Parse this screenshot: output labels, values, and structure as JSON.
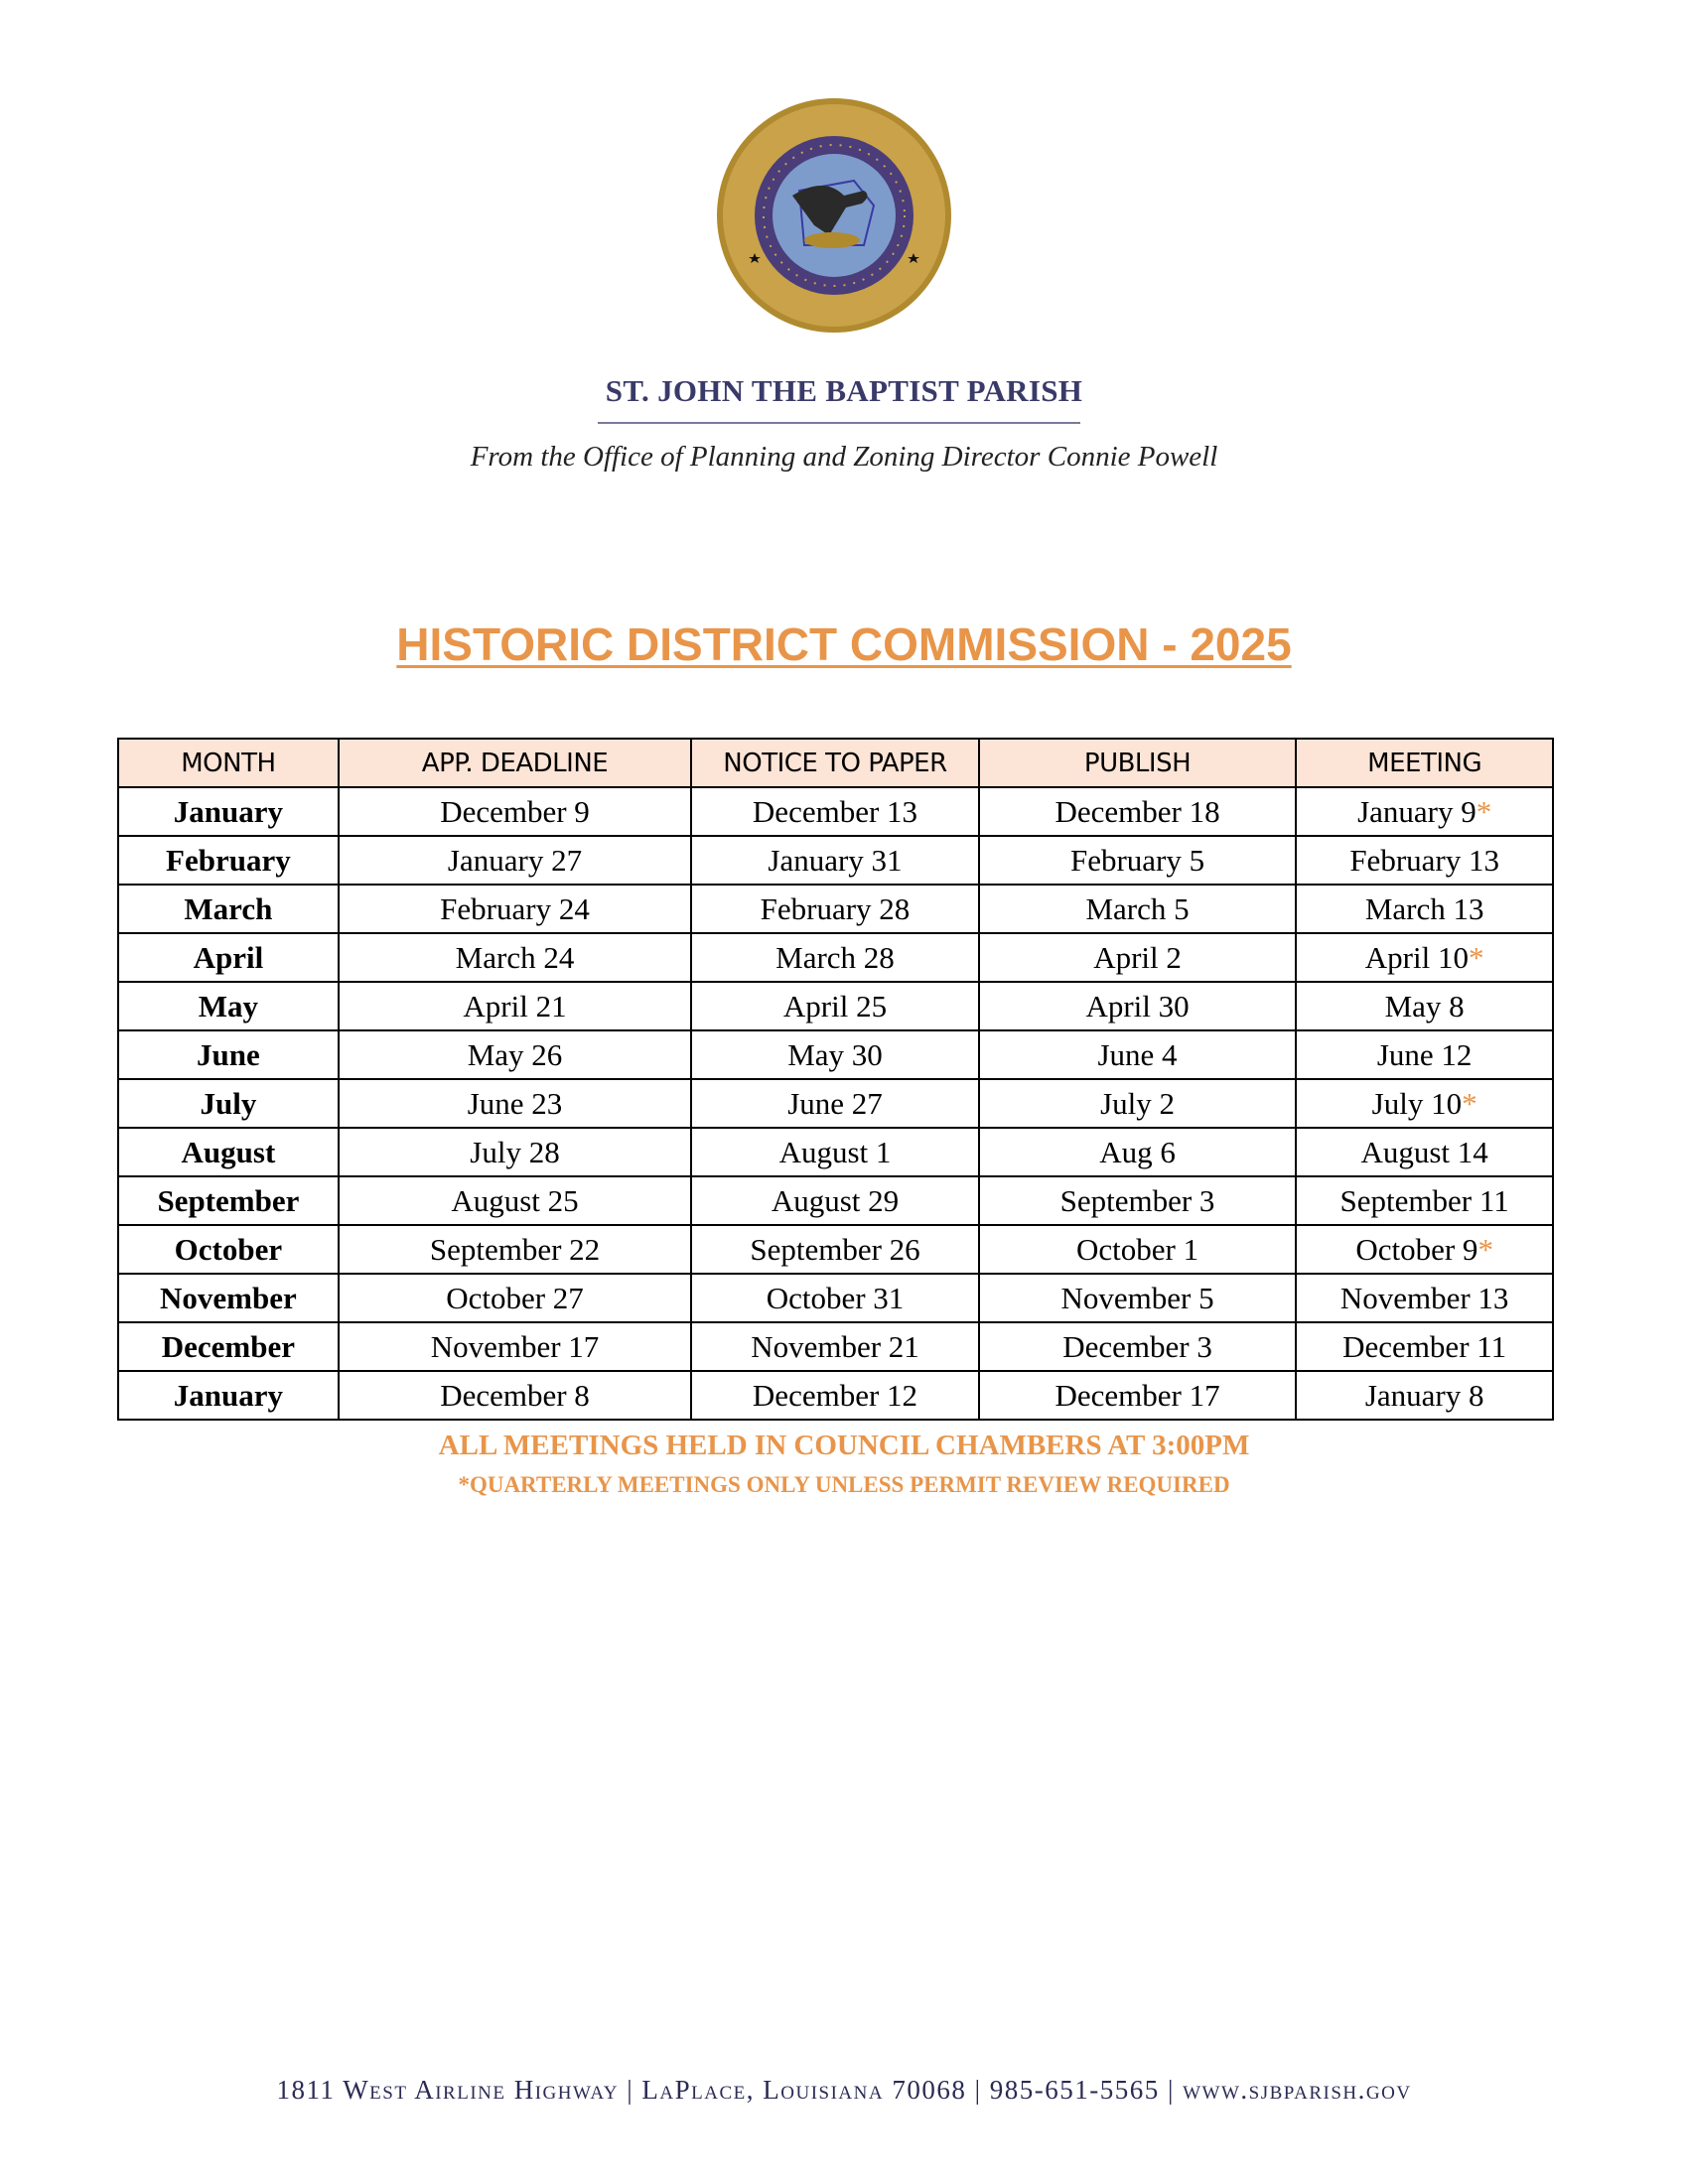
{
  "header": {
    "seal_text": [
      "ST. JOHN THE BAPTIST PARISH",
      "LOUISIANA",
      "UNION",
      "JUSTICE",
      "CONFIDENCE"
    ],
    "parish_name": "ST. JOHN THE BAPTIST PARISH",
    "office_line": "From the Office of Planning and Zoning Director Connie Powell"
  },
  "title": "HISTORIC DISTRICT COMMISSION - 2025",
  "colors": {
    "accent": "#E8954A",
    "header_bg": "#FCE4D6",
    "navy": "#3a3a6a"
  },
  "table": {
    "columns": [
      "MONTH",
      "APP. DEADLINE",
      "NOTICE TO PAPER",
      "PUBLISH",
      "MEETING"
    ],
    "rows": [
      {
        "month": "January",
        "deadline": "December 9",
        "notice": "December 13",
        "publish": "December 18",
        "meeting": "January 9",
        "star": "*"
      },
      {
        "month": "February",
        "deadline": "January 27",
        "notice": "January 31",
        "publish": "February 5",
        "meeting": "February 13",
        "star": ""
      },
      {
        "month": "March",
        "deadline": "February 24",
        "notice": "February 28",
        "publish": "March 5",
        "meeting": "March 13",
        "star": ""
      },
      {
        "month": "April",
        "deadline": "March 24",
        "notice": "March 28",
        "publish": "April 2",
        "meeting": "April 10",
        "star": "*"
      },
      {
        "month": "May",
        "deadline": "April 21",
        "notice": "April 25",
        "publish": "April 30",
        "meeting": "May 8",
        "star": ""
      },
      {
        "month": "June",
        "deadline": "May 26",
        "notice": "May 30",
        "publish": "June 4",
        "meeting": "June 12",
        "star": ""
      },
      {
        "month": "July",
        "deadline": "June 23",
        "notice": "June 27",
        "publish": "July 2",
        "meeting": "July 10",
        "star": "*"
      },
      {
        "month": "August",
        "deadline": "July 28",
        "notice": "August 1",
        "publish": "Aug 6",
        "meeting": "August 14",
        "star": ""
      },
      {
        "month": "September",
        "deadline": "August 25",
        "notice": "August 29",
        "publish": "September 3",
        "meeting": "September 11",
        "star": ""
      },
      {
        "month": "October",
        "deadline": "September 22",
        "notice": "September 26",
        "publish": "October 1",
        "meeting": "October 9",
        "star": "*"
      },
      {
        "month": "November",
        "deadline": "October 27",
        "notice": "October 31",
        "publish": "November 5",
        "meeting": "November 13",
        "star": ""
      },
      {
        "month": "December",
        "deadline": "November 17",
        "notice": "November 21",
        "publish": "December 3",
        "meeting": "December 11",
        "star": ""
      },
      {
        "month": "January",
        "deadline": "December 8",
        "notice": "December 12",
        "publish": "December 17",
        "meeting": "January 8",
        "star": ""
      }
    ]
  },
  "notes": {
    "location": "ALL MEETINGS HELD IN COUNCIL CHAMBERS AT 3:00PM",
    "quarterly": "*QUARTERLY MEETINGS ONLY UNLESS PERMIT REVIEW REQUIRED"
  },
  "footer": "1811 West Airline Highway | LaPlace, Louisiana 70068 | 985-651-5565 | www.sjbparish.gov"
}
